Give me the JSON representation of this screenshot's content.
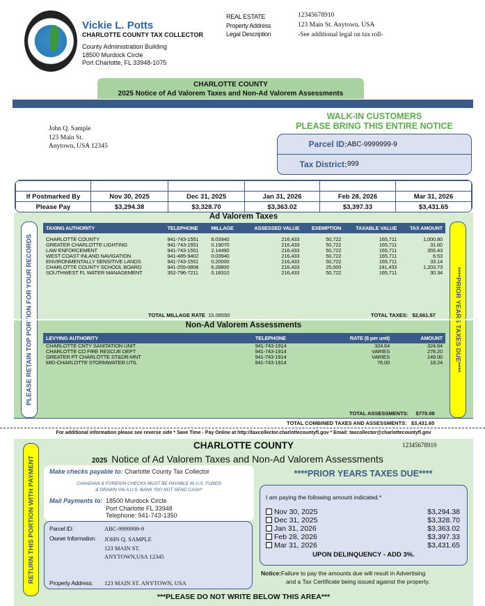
{
  "header": {
    "logo_text": "TAX COLLECTOR CHARLOTTE COUNTY FLORIDA 1921 VICKIE L. POTTS",
    "name": "Vickie L. Potts",
    "title": "CHARLOTTE COUNTY TAX COLLECTOR",
    "addr1": "County Administration Building",
    "addr2": "18500 Murdock Circle",
    "addr3": "Port Charlotte, FL 33948-1075"
  },
  "property": {
    "type_label": "REAL ESTATE",
    "type_value": "12345678910",
    "address_label": "Property Address",
    "address_value": "123 Main St. Anytown, USA",
    "legal_label": "Legal Description",
    "legal_value": "-See additional legal on tax roll-"
  },
  "title": {
    "county": "CHARLOTTE COUNTY",
    "notice": "2025 Notice of Ad Valorem Taxes and Non-Ad Valorem Assessments"
  },
  "mailing": {
    "name": "John Q. Sample",
    "street": "123 Main St.",
    "city": "Anytown, USA 12345"
  },
  "walkin": {
    "line1": "WALK-IN CUSTOMERS",
    "line2": "PLEASE BRING THIS ENTIRE NOTICE"
  },
  "parcel": {
    "id_label": "Parcel ID:",
    "id_value": "ABC-9999999-9",
    "district_label": "Tax District:",
    "district_value": "999"
  },
  "schedule": {
    "postmark_label": "If Postmarked By",
    "pay_label": "Please Pay",
    "dates": [
      "Nov 30, 2025",
      "Dec 31, 2025",
      "Jan 31, 2026",
      "Feb 28, 2026",
      "Mar 31, 2026"
    ],
    "amounts": [
      "$3,294.38",
      "$3,328.70",
      "$3,363.02",
      "$3,397.33",
      "$3,431.65"
    ]
  },
  "side_tabs": {
    "left": "PLEASE RETAIN TOP PORTION FOR YOUR RECORDS",
    "right": "****PRIOR YEARS TAXES DUE****",
    "bottom": "RETURN THIS PORTION WITH PAYMENT"
  },
  "ad_valorem": {
    "title": "Ad Valorem Taxes",
    "columns": [
      "TAXING AUTHORITY",
      "TELEPHONE",
      "MILLAGE",
      "ASSESSED VALUE",
      "EXEMPTION",
      "TAXABLE VALUE",
      "TAX AMOUNT"
    ],
    "rows": [
      [
        "CHARLOTTE COUNTY",
        "941-743-1551",
        "6.03940",
        "216,433",
        "50,722",
        "165,711",
        "1,000.80"
      ],
      [
        "GREATER CHARLOTTE LIGHTING",
        "941-743-1551",
        "0.19070",
        "216,433",
        "50,722",
        "165,711",
        "31.60"
      ],
      [
        "LAW ENFORCEMENT",
        "941-743-1551",
        "2.14490",
        "216,433",
        "50,722",
        "165,711",
        "355.43"
      ],
      [
        "WEST COAST INLAND NAVIGATION",
        "941-485-9402",
        "0.03940",
        "216,433",
        "50,722",
        "165,711",
        "6.53"
      ],
      [
        "ENVIRONMENTALLY SENSITIVE LANDS",
        "941-743-1551",
        "0.20000",
        "216,433",
        "50,722",
        "165,711",
        "33.14"
      ],
      [
        "CHARLOTTE COUNTY SCHOOL BOARD",
        "941-255-0808",
        "6.28800",
        "216,433",
        "25,000",
        "191,433",
        "1,203.73"
      ],
      [
        "SOUTHWEST FL WATER MANAGEMENT",
        "352-796-7211",
        "0.18310",
        "216,433",
        "50,722",
        "165,711",
        "30.34"
      ]
    ],
    "total_millage_label": "TOTAL MILLAGE RATE",
    "total_millage": "15.08550",
    "total_taxes_label": "TOTAL TAXES:",
    "total_taxes": "$2,661.57"
  },
  "non_ad_valorem": {
    "title": "Non-Ad Valorem Assessments",
    "columns": [
      "LEVYING AUTHORITY",
      "TELEPHONE",
      "RATE ($ per unit)",
      "AMOUNT"
    ],
    "rows": [
      [
        "CHARLOTTE CNTY SANITATION UNIT",
        "941-743-1914",
        "324.64",
        "324.64"
      ],
      [
        "CHARLOTTE CO FIRE RESCUE DEPT",
        "941-743-1914",
        "VARIES",
        "278.20"
      ],
      [
        "GREATER PT CHARLOTTE ST&DR-MNT",
        "941-743-1914",
        "VARIES",
        "149.00"
      ],
      [
        "MID-CHARLOTTE STORMWATER UTIL",
        "941-743-1914",
        "76.00",
        "18.24"
      ]
    ],
    "total_label": "TOTAL ASSESSMENTS:",
    "total": "$770.08",
    "combined_label": "TOTAL COMBINED TAXES AND ASSESSMENTS:",
    "combined": "$3,431.65"
  },
  "info_line": "For additional information please see reverse side  *  Save Time - Pay Online at http://taxcollector.charlottecountyfl.gov  *  Email: taxcollector@charlottecountyfl.gov",
  "stub": {
    "county": "CHARLOTTE COUNTY",
    "number": "12345678910",
    "year": "2025",
    "notice": "Notice of Ad Valorem Taxes and Non-Ad Valorem Assessments",
    "payable_label": "Make checks payable to:",
    "payable_value": "Charlotte County Tax Collector",
    "foreign1": "CANADIAN & FOREIGN CHECKS MUST BE PAYABLE IN U.S. FUNDS",
    "foreign2": "& DRAWN ON A U.S. BANK     *DO NOT SEND CASH*",
    "mail_label": "Mail Payments to:",
    "mail1": "18500 Murdock Circle",
    "mail2": "Port Charlotte FL 33948",
    "mail3": "Telephone: 941-743-1350",
    "parcel_label": "Parcel ID:",
    "parcel_value": "ABC-9999999-9",
    "owner_label": "Owner Information:",
    "owner1": "JOHN Q. SAMPLE",
    "owner2": "123 MAIN ST.",
    "owner3": "ANYTOWN,USA 12345",
    "prop_label": "Property Address:",
    "prop_value": "123 MAIN ST. ANYTOWN, USA",
    "prior_title": "****PRIOR YEARS TAXES DUE****",
    "paying_text": "I am paying the following amount indicated.*",
    "delinquency": "UPON DELINQUENCY - ADD 3%.",
    "notice_label": "Notice:",
    "notice_text1": "Failure to pay the amounts due will result in Advertising",
    "notice_text2": "and a Tax Certificate being issued against the property.",
    "do_not_write": "***PLEASE DO NOT WRITE BELOW THIS AREA***"
  },
  "colors": {
    "navy": "#3a5a88",
    "green_title": "#a8d3a0",
    "green_walkin": "#5aae4a",
    "yellow_tab": "#ffff00",
    "light_blue_box": "#dbe1f0"
  }
}
